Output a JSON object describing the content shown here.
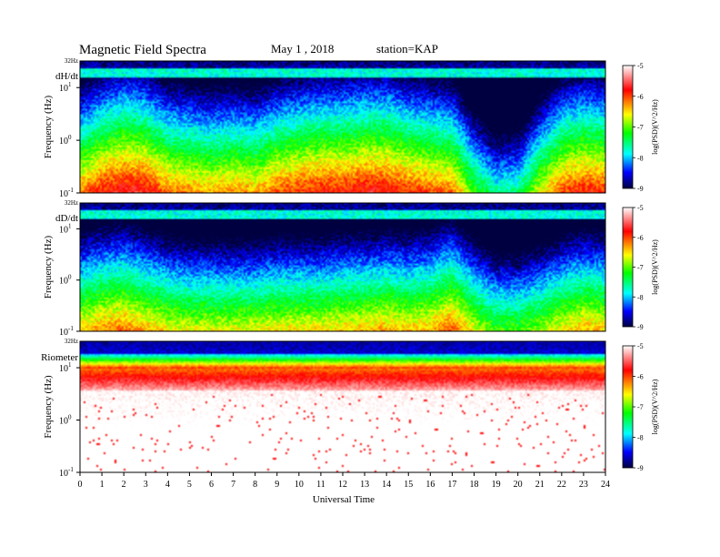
{
  "header": {
    "title": "Magnetic Field Spectra",
    "date": "May 1 , 2018",
    "station": "station=KAP"
  },
  "panels": [
    {
      "label": "dH/dt",
      "top_label": "32Hz",
      "ylabel": "Frequency (Hz)"
    },
    {
      "label": "dD/dt",
      "top_label": "32Hz",
      "ylabel": "Frequency (Hz)"
    },
    {
      "label": "Riometer",
      "top_label": "32Hz",
      "ylabel": "Frequency (Hz)"
    }
  ],
  "y_ticks": [
    "10",
    "10",
    "10"
  ],
  "y_exponents": [
    "1",
    "0",
    "-1"
  ],
  "colorbar": {
    "ticks": [
      "-5",
      "-6",
      "-7",
      "-8",
      "-9"
    ],
    "label": "log(PSD)(V^2/Hz)",
    "colors": [
      "#ffffff",
      "#ff0000",
      "#ffff00",
      "#00ff00",
      "#00ffff",
      "#0000ff",
      "#000040"
    ]
  },
  "chart_data": {
    "type": "heatmap",
    "title": "Magnetic Field Spectra",
    "xlabel": "Universal Time",
    "x_ticks": [
      "0",
      "1",
      "2",
      "3",
      "4",
      "5",
      "6",
      "7",
      "8",
      "9",
      "10",
      "11",
      "12",
      "13",
      "14",
      "15",
      "16",
      "17",
      "18",
      "19",
      "20",
      "21",
      "22",
      "23",
      "24"
    ],
    "xlim": [
      0,
      24
    ],
    "ylim_hz": [
      0.1,
      32
    ],
    "y_scale": "log",
    "color_scale_log_psd": [
      -9,
      -5
    ],
    "series": [
      {
        "name": "dH/dt",
        "low_freq_level_by_hour": [
          -6.2,
          -5.8,
          -5.6,
          -5.7,
          -6.1,
          -6.2,
          -6.3,
          -6.2,
          -6.3,
          -6.0,
          -5.9,
          -5.8,
          -5.8,
          -5.7,
          -5.7,
          -5.9,
          -6.0,
          -6.1,
          -7.0,
          -7.6,
          -7.5,
          -6.6,
          -6.0,
          -5.8,
          -5.9
        ]
      },
      {
        "name": "dD/dt",
        "low_freq_level_by_hour": [
          -6.4,
          -6.2,
          -6.1,
          -6.3,
          -6.5,
          -6.6,
          -6.6,
          -6.6,
          -6.6,
          -6.5,
          -6.5,
          -6.5,
          -6.4,
          -6.4,
          -6.3,
          -6.4,
          -6.3,
          -6.0,
          -6.6,
          -7.0,
          -7.0,
          -6.8,
          -6.5,
          -6.3,
          -6.4
        ]
      },
      {
        "name": "Riometer",
        "low_freq_level_by_hour": [
          -5.0,
          -5.0,
          -5.0,
          -5.0,
          -5.0,
          -5.0,
          -5.0,
          -5.0,
          -5.0,
          -5.0,
          -5.0,
          -5.0,
          -5.0,
          -5.0,
          -5.0,
          -5.0,
          -5.0,
          -5.0,
          -5.0,
          -5.0,
          -5.0,
          -5.0,
          -5.0,
          -5.0,
          -5.0
        ]
      }
    ]
  }
}
